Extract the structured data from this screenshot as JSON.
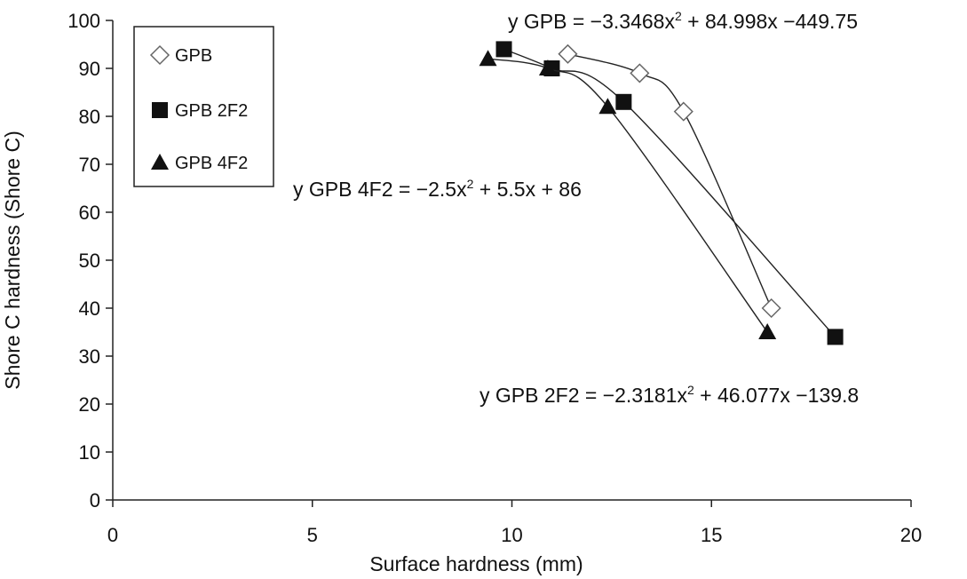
{
  "chart_data": {
    "type": "scatter",
    "xlabel": "Surface hardness (mm)",
    "ylabel": "Shore C hardness (Shore C)",
    "xlim": [
      0,
      20
    ],
    "ylim": [
      0,
      100
    ],
    "xticks": [
      0,
      5,
      10,
      15,
      20
    ],
    "yticks": [
      0,
      10,
      20,
      30,
      40,
      50,
      60,
      70,
      80,
      90,
      100
    ],
    "grid": false,
    "legend": "top-left",
    "series": [
      {
        "name": "GPB",
        "marker": "open-diamond",
        "color": "#666666",
        "x": [
          11.4,
          13.2,
          14.3,
          16.5
        ],
        "y": [
          93,
          89,
          81,
          40
        ],
        "trend": {
          "type": "polynomial",
          "order": 2,
          "coefficients": [
            -3.3468,
            84.998,
            -449.75
          ]
        },
        "equation": {
          "prefix": "y GPB = −3.3468x",
          "sup": "2",
          "suffix": " + 84.998x −449.75"
        }
      },
      {
        "name": "GPB 2F2",
        "marker": "filled-square",
        "color": "#111111",
        "x": [
          9.8,
          11.0,
          12.8,
          18.1
        ],
        "y": [
          94,
          90,
          83,
          34
        ],
        "trend": {
          "type": "polynomial",
          "order": 2,
          "coefficients": [
            -2.3181,
            46.077,
            -139.8
          ]
        },
        "equation": {
          "prefix": "y GPB 2F2 = −2.3181x",
          "sup": "2",
          "suffix": " + 46.077x −139.8"
        }
      },
      {
        "name": "GPB 4F2",
        "marker": "filled-triangle",
        "color": "#111111",
        "x": [
          9.4,
          10.9,
          12.4,
          16.4
        ],
        "y": [
          92,
          90,
          82,
          35
        ],
        "trend": {
          "type": "polynomial",
          "order": 2,
          "coefficients": [
            -2.5,
            5.5,
            86
          ]
        },
        "equation": {
          "prefix": "y GPB 4F2 = −2.5x",
          "sup": "2",
          "suffix": " + 5.5x + 86"
        }
      }
    ]
  }
}
